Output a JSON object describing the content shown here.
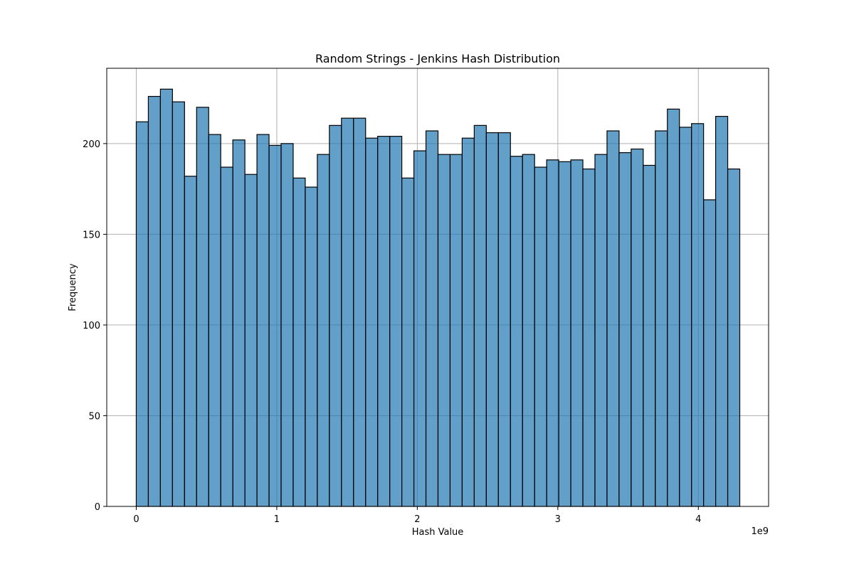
{
  "chart_data": {
    "type": "bar",
    "title": "Random Strings - Jenkins Hash Distribution",
    "xlabel": "Hash Value",
    "ylabel": "Frequency",
    "x_offset_label": "1e9",
    "bin_start": 0,
    "bin_width": 85899345.92,
    "values": [
      212,
      226,
      230,
      223,
      182,
      220,
      205,
      187,
      202,
      183,
      205,
      199,
      200,
      181,
      176,
      194,
      210,
      214,
      214,
      203,
      204,
      204,
      181,
      196,
      207,
      194,
      194,
      203,
      210,
      206,
      206,
      193,
      194,
      187,
      191,
      190,
      191,
      186,
      194,
      207,
      195,
      197,
      188,
      207,
      219,
      209,
      211,
      169,
      215,
      186
    ],
    "xlim": [
      -210000000,
      4500000000
    ],
    "ylim": [
      0,
      241.5
    ],
    "x_ticks": [
      0,
      1000000000,
      2000000000,
      3000000000,
      4000000000
    ],
    "x_tick_labels": [
      "0",
      "1",
      "2",
      "3",
      "4"
    ],
    "y_ticks": [
      0,
      50,
      100,
      150,
      200
    ],
    "y_tick_labels": [
      "0",
      "50",
      "100",
      "150",
      "200"
    ],
    "grid": true,
    "bar_color": "#1f77b4",
    "bar_edge_color": "#000000",
    "grid_color": "#b0b0b0"
  }
}
